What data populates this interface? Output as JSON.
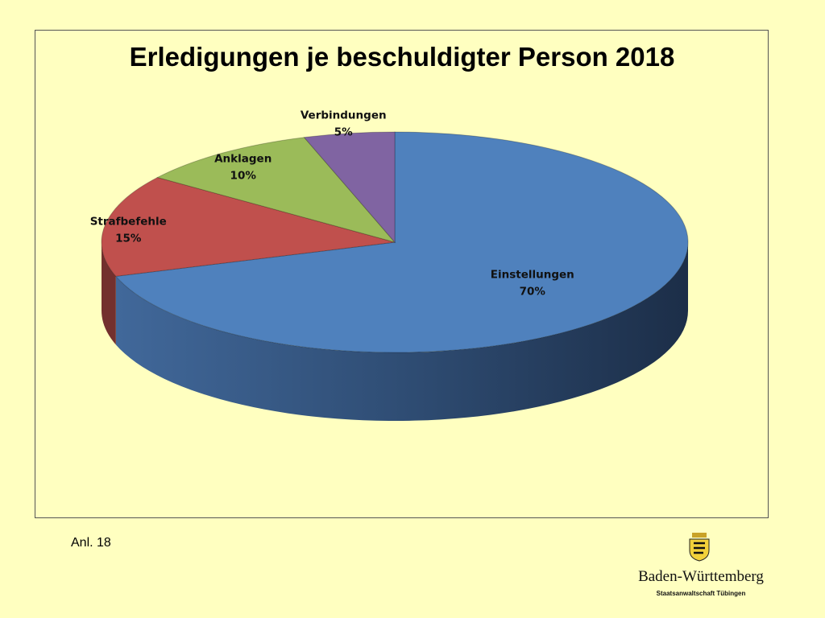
{
  "footnote": "Anl. 18",
  "logo": {
    "state": "Baden-Württemberg",
    "office": "Staatsanwaltschaft Tübingen",
    "icon": "coat-of-arms-icon"
  },
  "chart_data": {
    "type": "pie",
    "title": "Erledigungen je beschuldigter Person 2018",
    "legend": "none",
    "labels": [
      "Einstellungen",
      "Strafbefehle",
      "Anklagen",
      "Verbindungen"
    ],
    "values": [
      70,
      15,
      10,
      5
    ],
    "value_labels": [
      "70%",
      "15%",
      "10%",
      "5%"
    ],
    "colors": [
      "#4f81bd",
      "#c0504d",
      "#9bbb59",
      "#8064a2"
    ]
  }
}
